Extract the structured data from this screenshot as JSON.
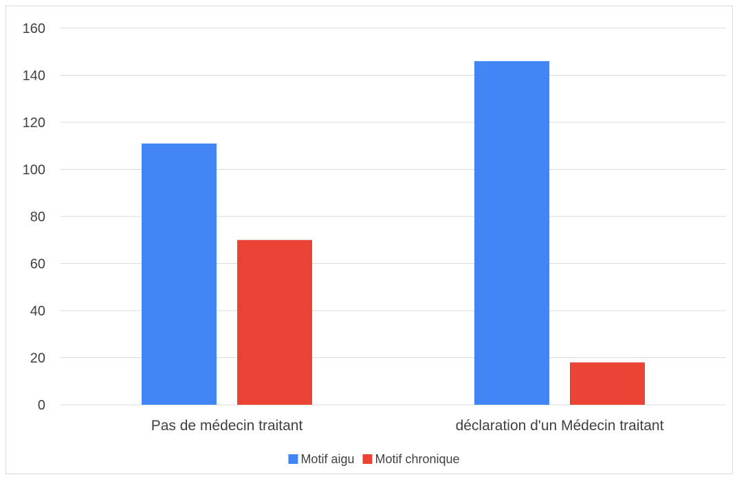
{
  "chart_data": {
    "type": "bar",
    "title": "",
    "xlabel": "",
    "ylabel": "",
    "categories": [
      "Pas de médecin traitant",
      "déclaration d'un Médecin traitant"
    ],
    "series": [
      {
        "name": "Motif aigu",
        "values": [
          111,
          146
        ],
        "color": "#4285f4"
      },
      {
        "name": "Motif chronique",
        "values": [
          70,
          18
        ],
        "color": "#ea4335"
      }
    ],
    "ylim": [
      0,
      160
    ],
    "yticks": [
      0,
      20,
      40,
      60,
      80,
      100,
      120,
      140,
      160
    ],
    "ytick_labels": [
      "0",
      "20",
      "40",
      "60",
      "80",
      "100",
      "120",
      "140",
      "160"
    ],
    "grid": true,
    "legend_position": "bottom",
    "colors": {
      "grid": "#d9d9d9",
      "text": "#404040",
      "border": "#d9d9d9"
    }
  }
}
